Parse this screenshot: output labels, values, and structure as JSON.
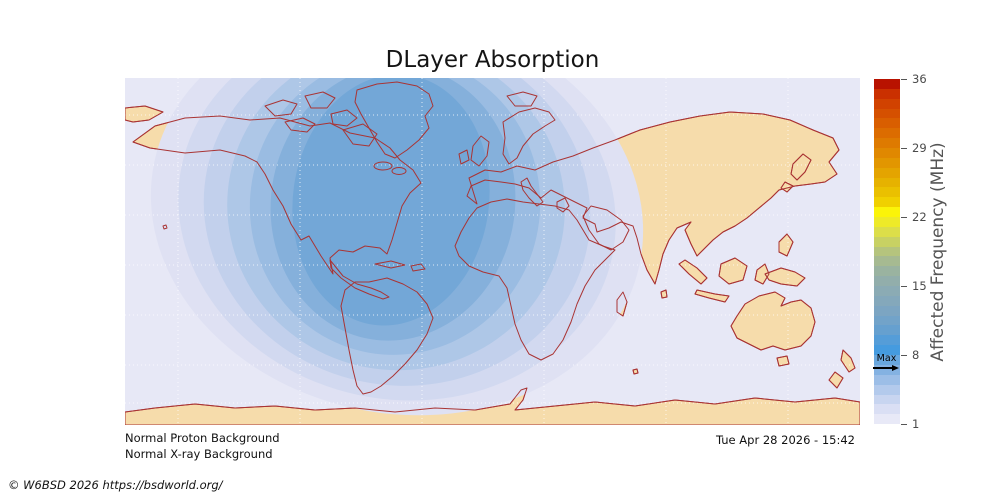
{
  "title": "DLayer Absorption",
  "status": {
    "proton": "Normal Proton Background",
    "xray": "Normal X-ray Background"
  },
  "timestamp": "Tue Apr 28 2026 - 15:42",
  "credit": "© W6BSD 2026 https://bsdworld.org/",
  "map": {
    "ocean_color": "#e7e8f6",
    "land_color": "#f6dcab",
    "coast_color": "#a93434",
    "graticule_color": "rgba(255,255,255,0.75)",
    "ring_colors": [
      "#dfe1f3",
      "#d2d9f0",
      "#c2d0ec",
      "#aec7e7",
      "#9abce2",
      "#85b0db",
      "#73a7d7"
    ]
  },
  "colorbar": {
    "axis_label": "Affected Frequency (MHz)",
    "max_label": "Max",
    "ticks": [
      "36",
      "29",
      "22",
      "15",
      "8",
      "1"
    ],
    "tick_spacing_px": 69,
    "colors_top_to_bottom": [
      "#b81200",
      "#ca3000",
      "#d14200",
      "#d55000",
      "#d95e00",
      "#dc6c00",
      "#de7a00",
      "#e08800",
      "#e29600",
      "#e4a400",
      "#e6b200",
      "#eac000",
      "#f0d000",
      "#fbf408",
      "#eeea28",
      "#dcde49",
      "#c8d163",
      "#b5c47d",
      "#a6ba91",
      "#9ab3a0",
      "#92aeab",
      "#8babb4",
      "#84a8bb",
      "#7ca5c2",
      "#72a3c9",
      "#66a0cf",
      "#559dd8",
      "#459bdf",
      "#69a7de",
      "#84b2e2",
      "#9cbee7",
      "#b3caec",
      "#c8d5f0",
      "#dadff4",
      "#e8e9f7"
    ]
  }
}
